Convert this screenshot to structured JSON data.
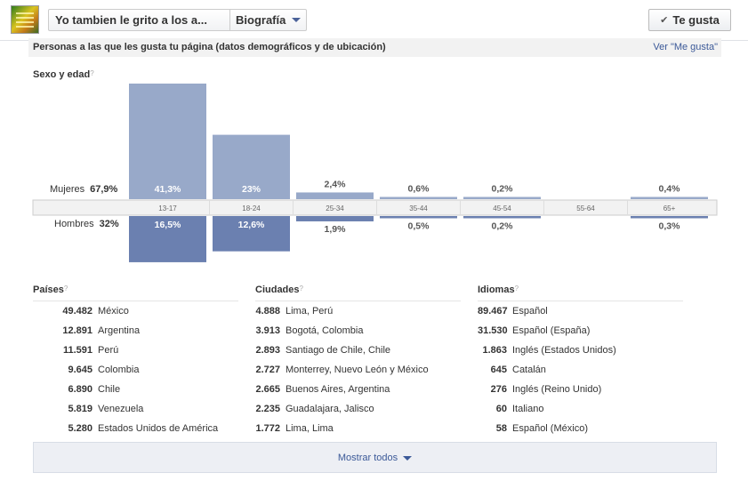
{
  "header": {
    "page_name": "Yo tambien le grito a los a...",
    "tab_label": "Biografía",
    "like_label": "Te gusta"
  },
  "section": {
    "title": "Personas a las que les gusta tu página (datos demográficos y de ubicación)",
    "link": "Ver \"Me gusta\""
  },
  "age_gender": {
    "title": "Sexo y edad",
    "help": "?",
    "women_label": "Mujeres",
    "women_total": "67,9%",
    "men_label": "Hombres",
    "men_total": "32%"
  },
  "chart_data": {
    "type": "bar",
    "categories": [
      "13-17",
      "18-24",
      "25-34",
      "35-44",
      "45-54",
      "55-64",
      "65+"
    ],
    "series": [
      {
        "name": "Mujeres",
        "values": [
          41.3,
          23,
          2.4,
          0.6,
          0.2,
          null,
          0.4
        ],
        "labels": [
          "41,3%",
          "23%",
          "2,4%",
          "0,6%",
          "0,2%",
          "",
          "0,4%"
        ]
      },
      {
        "name": "Hombres",
        "values": [
          16.5,
          12.6,
          1.9,
          0.5,
          0.2,
          null,
          0.3
        ],
        "labels": [
          "16,5%",
          "12,6%",
          "1,9%",
          "0,5%",
          "0,2%",
          "",
          "0,3%"
        ]
      }
    ],
    "colors": {
      "women": "#98a9c9",
      "men": "#6b80b0",
      "axis_bg": "#f2f2f2"
    }
  },
  "countries": {
    "title": "Países",
    "help": "?",
    "rows": [
      {
        "count": "49.482",
        "name": "México"
      },
      {
        "count": "12.891",
        "name": "Argentina"
      },
      {
        "count": "11.591",
        "name": "Perú"
      },
      {
        "count": "9.645",
        "name": "Colombia"
      },
      {
        "count": "6.890",
        "name": "Chile"
      },
      {
        "count": "5.819",
        "name": "Venezuela"
      },
      {
        "count": "5.280",
        "name": "Estados Unidos de América"
      }
    ]
  },
  "cities": {
    "title": "Ciudades",
    "help": "?",
    "rows": [
      {
        "count": "4.888",
        "name": "Lima, Perú"
      },
      {
        "count": "3.913",
        "name": "Bogotá, Colombia"
      },
      {
        "count": "2.893",
        "name": "Santiago de Chile, Chile"
      },
      {
        "count": "2.727",
        "name": "Monterrey, Nuevo León y México"
      },
      {
        "count": "2.665",
        "name": "Buenos Aires, Argentina"
      },
      {
        "count": "2.235",
        "name": "Guadalajara, Jalisco"
      },
      {
        "count": "1.772",
        "name": "Lima, Lima"
      }
    ]
  },
  "languages": {
    "title": "Idiomas",
    "help": "?",
    "rows": [
      {
        "count": "89.467",
        "name": "Español"
      },
      {
        "count": "31.530",
        "name": "Español (España)"
      },
      {
        "count": "1.863",
        "name": "Inglés (Estados Unidos)"
      },
      {
        "count": "645",
        "name": "Catalán"
      },
      {
        "count": "276",
        "name": "Inglés (Reino Unido)"
      },
      {
        "count": "60",
        "name": "Italiano"
      },
      {
        "count": "58",
        "name": "Español (México)"
      }
    ]
  },
  "footer": {
    "show_all": "Mostrar todos"
  }
}
